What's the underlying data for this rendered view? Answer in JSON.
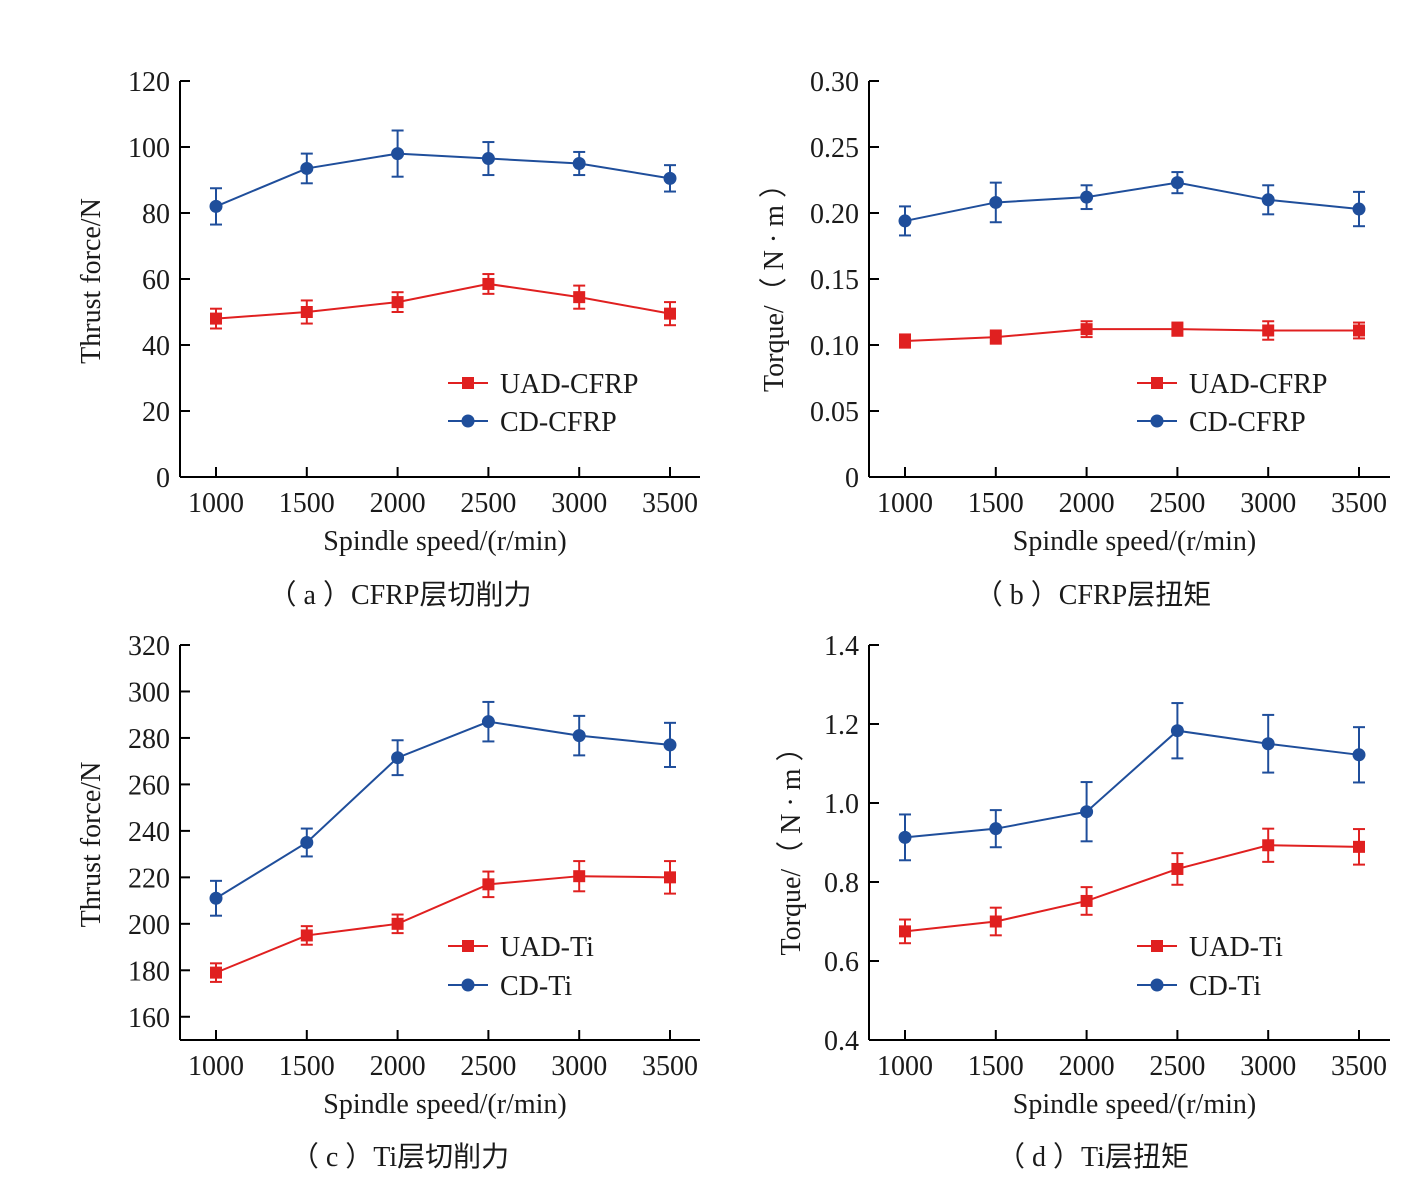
{
  "colors": {
    "uad": "#e02020",
    "cd": "#1f4e9b",
    "axis": "#000000"
  },
  "chart_data": [
    {
      "type": "line",
      "caption": "（ a ）CFRP层切削力",
      "xlabel": "Spindle speed/(r/min)",
      "ylabel": "Thrust force/N",
      "x": [
        1000,
        1500,
        2000,
        2500,
        3000,
        3500
      ],
      "x_tick_labels": [
        "1000",
        "1500",
        "2000",
        "2500",
        "3000",
        "3500"
      ],
      "ylim": [
        0,
        120
      ],
      "y_ticks": [
        0,
        20,
        40,
        60,
        80,
        100,
        120
      ],
      "y_tick_labels": [
        "0",
        "20",
        "40",
        "60",
        "80",
        "100",
        "120"
      ],
      "legend_position": "bottom-right",
      "series": [
        {
          "name": "UAD-CFRP",
          "marker": "square",
          "color_key": "uad",
          "values": [
            48,
            50,
            53,
            58.5,
            54.5,
            49.5
          ],
          "errors": [
            3,
            3.5,
            3,
            3,
            3.5,
            3.5
          ]
        },
        {
          "name": "CD-CFRP",
          "marker": "circle",
          "color_key": "cd",
          "values": [
            82,
            93.5,
            98,
            96.5,
            95,
            90.5
          ],
          "errors": [
            5.5,
            4.5,
            7,
            5,
            3.5,
            4
          ]
        }
      ]
    },
    {
      "type": "line",
      "caption": "（ b ）CFRP层扭矩",
      "xlabel": "Spindle speed/(r/min)",
      "ylabel": "Torque/（ N · m ）",
      "x": [
        1000,
        1500,
        2000,
        2500,
        3000,
        3500
      ],
      "x_tick_labels": [
        "1000",
        "1500",
        "2000",
        "2500",
        "3000",
        "3500"
      ],
      "ylim": [
        0,
        0.3
      ],
      "y_ticks": [
        0,
        0.05,
        0.1,
        0.15,
        0.2,
        0.25,
        0.3
      ],
      "y_tick_labels": [
        "0",
        "0.05",
        "0.10",
        "0.15",
        "0.20",
        "0.25",
        "0.30"
      ],
      "legend_position": "bottom-right",
      "series": [
        {
          "name": "UAD-CFRP",
          "marker": "square",
          "color_key": "uad",
          "values": [
            0.103,
            0.106,
            0.112,
            0.112,
            0.111,
            0.111
          ],
          "errors": [
            0.005,
            0.005,
            0.006,
            0.005,
            0.007,
            0.006
          ]
        },
        {
          "name": "CD-CFRP",
          "marker": "circle",
          "color_key": "cd",
          "values": [
            0.194,
            0.208,
            0.212,
            0.223,
            0.21,
            0.203
          ],
          "errors": [
            0.011,
            0.015,
            0.009,
            0.008,
            0.011,
            0.013
          ]
        }
      ]
    },
    {
      "type": "line",
      "caption": "（ c ）Ti层切削力",
      "xlabel": "Spindle speed/(r/min)",
      "ylabel": "Thrust force/N",
      "x": [
        1000,
        1500,
        2000,
        2500,
        3000,
        3500
      ],
      "x_tick_labels": [
        "1000",
        "1500",
        "2000",
        "2500",
        "3000",
        "3500"
      ],
      "ylim": [
        150,
        320
      ],
      "y_ticks": [
        160,
        180,
        200,
        220,
        240,
        260,
        280,
        300,
        320
      ],
      "y_tick_labels": [
        "160",
        "180",
        "200",
        "220",
        "240",
        "260",
        "280",
        "300",
        "320"
      ],
      "legend_position": "bottom-right",
      "series": [
        {
          "name": "UAD-Ti",
          "marker": "square",
          "color_key": "uad",
          "values": [
            179,
            195,
            200,
            217,
            220.5,
            220
          ],
          "errors": [
            4,
            4,
            4,
            5.5,
            6.5,
            7
          ]
        },
        {
          "name": "CD-Ti",
          "marker": "circle",
          "color_key": "cd",
          "values": [
            211,
            235,
            271.5,
            287,
            281,
            277
          ],
          "errors": [
            7.5,
            6,
            7.5,
            8.5,
            8.5,
            9.5
          ]
        }
      ]
    },
    {
      "type": "line",
      "caption": "（ d ）Ti层扭矩",
      "xlabel": "Spindle speed/(r/min)",
      "ylabel": "Torque/（ N · m ）",
      "x": [
        1000,
        1500,
        2000,
        2500,
        3000,
        3500
      ],
      "x_tick_labels": [
        "1000",
        "1500",
        "2000",
        "2500",
        "3000",
        "3500"
      ],
      "ylim": [
        0.4,
        1.4
      ],
      "y_ticks": [
        0.4,
        0.6,
        0.8,
        1.0,
        1.2,
        1.4
      ],
      "y_tick_labels": [
        "0.4",
        "0.6",
        "0.8",
        "1.0",
        "1.2",
        "1.4"
      ],
      "legend_position": "bottom-right",
      "series": [
        {
          "name": "UAD-Ti",
          "marker": "square",
          "color_key": "uad",
          "values": [
            0.675,
            0.7,
            0.752,
            0.833,
            0.893,
            0.889
          ],
          "errors": [
            0.03,
            0.035,
            0.035,
            0.04,
            0.042,
            0.045
          ]
        },
        {
          "name": "CD-Ti",
          "marker": "circle",
          "color_key": "cd",
          "values": [
            0.913,
            0.935,
            0.978,
            1.183,
            1.15,
            1.122
          ],
          "errors": [
            0.058,
            0.047,
            0.075,
            0.07,
            0.073,
            0.07
          ]
        }
      ]
    }
  ]
}
